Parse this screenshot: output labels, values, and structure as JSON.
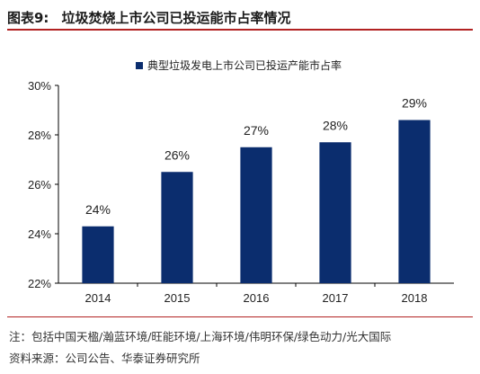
{
  "figure": {
    "number": "图表9:",
    "title": "垃圾焚烧上市公司已投运能市占率情况"
  },
  "chart_data": {
    "type": "bar",
    "categories": [
      "2014",
      "2015",
      "2016",
      "2017",
      "2018"
    ],
    "series": [
      {
        "name": "典型垃圾发电上市公司已投运产能市占率",
        "values": [
          24.3,
          26.5,
          27.5,
          27.7,
          28.6
        ],
        "labels": [
          "24%",
          "26%",
          "27%",
          "28%",
          "29%"
        ]
      }
    ],
    "ylim": [
      22,
      30
    ],
    "yticks": [
      22,
      24,
      26,
      28,
      30
    ],
    "ytick_labels": [
      "22%",
      "24%",
      "26%",
      "28%",
      "30%"
    ],
    "legend_position": "top",
    "grid": false,
    "bar_color": "#0b2d6e"
  },
  "footnotes": {
    "note": "注：包括中国天楹/瀚蓝环境/旺能环境/上海环境/伟明环保/绿色动力/光大国际",
    "source": "资料来源：公司公告、华泰证券研究所"
  }
}
